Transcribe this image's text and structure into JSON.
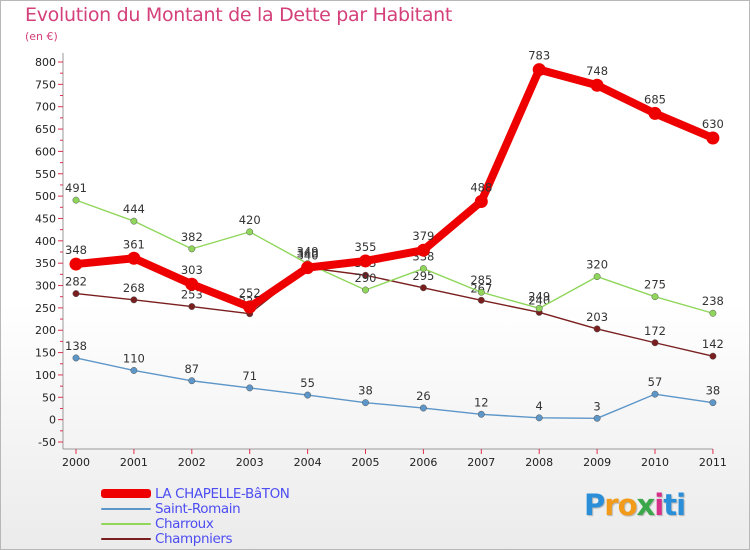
{
  "chart_data": {
    "type": "line",
    "title": "Evolution du Montant de la Dette par Habitant",
    "subtitle": "(en €)",
    "x": [
      "2000",
      "2001",
      "2002",
      "2003",
      "2004",
      "2005",
      "2006",
      "2007",
      "2008",
      "2009",
      "2010",
      "2011"
    ],
    "ylim": [
      -50,
      800
    ],
    "yticks": [
      -50,
      0,
      50,
      100,
      150,
      200,
      250,
      300,
      350,
      400,
      450,
      500,
      550,
      600,
      650,
      700,
      750,
      800
    ],
    "grid": false,
    "legend_position": "bottom-left",
    "series": [
      {
        "name": "Champniers",
        "color": "#7a1f1f",
        "values": [
          282,
          268,
          253,
          237,
          340,
          323,
          295,
          267,
          240,
          203,
          172,
          142
        ],
        "labels": [
          "282",
          "268",
          "253",
          "237",
          "340",
          "323",
          "295",
          "267",
          "240",
          "203",
          "172",
          "142"
        ]
      },
      {
        "name": "Charroux",
        "color": "#8fd65a",
        "values": [
          491,
          444,
          382,
          420,
          349,
          290,
          338,
          285,
          249,
          320,
          275,
          238
        ],
        "labels": [
          "491",
          "444",
          "382",
          "420",
          "349",
          "290",
          "338",
          "285",
          "249",
          "320",
          "275",
          "238"
        ]
      },
      {
        "name": "Saint-Romain",
        "color": "#5d96c8",
        "values": [
          138,
          110,
          87,
          71,
          55,
          38,
          26,
          12,
          4,
          3,
          57,
          38
        ],
        "labels": [
          "138",
          "110",
          "87",
          "71",
          "55",
          "38",
          "26",
          "12",
          "4",
          "3",
          "57",
          "38"
        ]
      },
      {
        "name": "LA CHAPELLE-BâTON",
        "color": "#ee0000",
        "values": [
          348,
          361,
          303,
          252,
          340,
          355,
          379,
          488,
          783,
          748,
          685,
          630
        ],
        "labels": [
          "348",
          "361",
          "303",
          "252",
          "340",
          "355",
          "379",
          "488",
          "783",
          "748",
          "685",
          "630"
        ]
      }
    ]
  },
  "logo": {
    "letters": [
      "P",
      "r",
      "o",
      "x",
      "i",
      "t",
      "i"
    ],
    "colors": [
      "#2a8fd8",
      "#f29a1a",
      "#f29a1a",
      "#3aa84a",
      "#d8308a",
      "#2a8fd8",
      "#2a8fd8"
    ]
  }
}
